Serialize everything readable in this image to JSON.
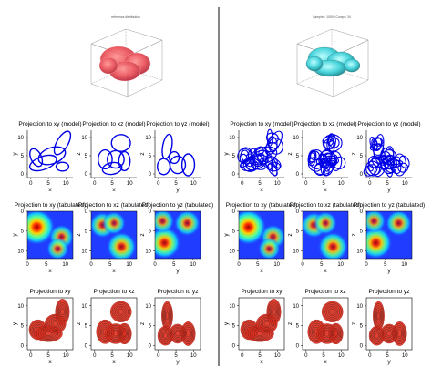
{
  "left_panel": {
    "title3d": "reference distribution",
    "row1_titles": [
      "Projection to xy (model)",
      "Projection to xz (model)",
      "Projection to yz (model)"
    ],
    "row2_titles": [
      "Projection to xy (tabulated)",
      "Projection to xz (tabulated)",
      "Projection to yz (tabulated)"
    ],
    "row3_titles": [
      "Projection to xy",
      "Projection to xz",
      "Projection to yz"
    ]
  },
  "right_panel": {
    "title3d": "Samples: 10000 Comps: 34",
    "row1_titles": [
      "Projection to xy (model)",
      "Projection to xz (model)",
      "Projection to yz (model)"
    ],
    "row2_titles": [
      "Projection to xy (tabulated)",
      "Projection to xz (tabulated)",
      "Projection to yz (tabulated)"
    ],
    "row3_titles": [
      "Projection to xy",
      "Projection to xz",
      "Projection to yz"
    ]
  },
  "axes": {
    "x_label": "x",
    "y_label": "y",
    "z_label": "z",
    "ticks": [
      "0",
      "5",
      "10"
    ]
  },
  "colors": {
    "ellipse": "#0000e6",
    "heat_background": "#1f3cff",
    "contour_fill": "#e03020",
    "contour_line": "#111111",
    "reference_blob": "#e8404a",
    "fitted_blob": "#35d0d8",
    "divider": "#333333"
  },
  "chart_data": [
    {
      "type": "scatter",
      "title": "reference distribution",
      "description_kind": "3d-surface",
      "xlim": [
        0,
        10
      ],
      "ylim": [
        0,
        10
      ],
      "zlim": [
        0,
        10
      ]
    },
    {
      "type": "scatter",
      "title": "Projection to xy (model)",
      "xlabel": "x",
      "ylabel": "y",
      "xlim": [
        -1,
        12
      ],
      "ylim": [
        -1,
        12
      ],
      "ellipses": [
        {
          "cx": 1.5,
          "cy": 4.5,
          "rx": 1.5,
          "ry": 2.6,
          "angle": -25
        },
        {
          "cx": 3.5,
          "cy": 3.0,
          "rx": 4.0,
          "ry": 1.8,
          "angle": -20
        },
        {
          "cx": 6.0,
          "cy": 5.0,
          "rx": 4.0,
          "ry": 2.2,
          "angle": -20
        },
        {
          "cx": 9.0,
          "cy": 8.5,
          "rx": 1.6,
          "ry": 3.6,
          "angle": 30
        },
        {
          "cx": 9.0,
          "cy": 2.0,
          "rx": 1.8,
          "ry": 1.2,
          "angle": 0
        }
      ]
    },
    {
      "type": "scatter",
      "title": "Projection to xz (model)",
      "xlabel": "x",
      "ylabel": "z",
      "xlim": [
        -1,
        12
      ],
      "ylim": [
        -1,
        12
      ],
      "ellipses": [
        {
          "cx": 7.5,
          "cy": 8.5,
          "rx": 2.7,
          "ry": 2.3,
          "angle": 0
        },
        {
          "cx": 3.0,
          "cy": 4.0,
          "rx": 2.0,
          "ry": 2.6,
          "angle": 0
        },
        {
          "cx": 6.0,
          "cy": 4.0,
          "rx": 2.4,
          "ry": 2.4,
          "angle": 0
        },
        {
          "cx": 5.0,
          "cy": 1.5,
          "rx": 2.8,
          "ry": 1.6,
          "angle": -10
        },
        {
          "cx": 8.5,
          "cy": 3.5,
          "rx": 1.6,
          "ry": 2.6,
          "angle": 0
        }
      ]
    },
    {
      "type": "scatter",
      "title": "Projection to yz (model)",
      "xlabel": "y",
      "ylabel": "z",
      "xlim": [
        -1,
        12
      ],
      "ylim": [
        -1,
        12
      ],
      "ellipses": [
        {
          "cx": 2.5,
          "cy": 7.5,
          "rx": 1.3,
          "ry": 3.4,
          "angle": 10
        },
        {
          "cx": 1.5,
          "cy": 2.0,
          "rx": 1.8,
          "ry": 2.2,
          "angle": 0
        },
        {
          "cx": 5.5,
          "cy": 2.5,
          "rx": 2.2,
          "ry": 2.4,
          "angle": 0
        },
        {
          "cx": 8.5,
          "cy": 2.5,
          "rx": 1.8,
          "ry": 3.0,
          "angle": 0
        },
        {
          "cx": 4.5,
          "cy": 4.5,
          "rx": 1.4,
          "ry": 1.6,
          "angle": 0
        }
      ]
    },
    {
      "type": "heatmap",
      "title": "Projection to xy (tabulated)",
      "xlabel": "x",
      "ylabel": "y",
      "xlim": [
        0,
        12
      ],
      "ylim": [
        0,
        12
      ],
      "peaks": [
        {
          "x": 2.5,
          "y": 4.0,
          "intensity": 1.0
        },
        {
          "x": 9.0,
          "y": 6.5,
          "intensity": 0.55
        },
        {
          "x": 8.0,
          "y": 9.5,
          "intensity": 0.45
        }
      ]
    },
    {
      "type": "heatmap",
      "title": "Projection to xz (tabulated)",
      "xlabel": "x",
      "ylabel": "z",
      "xlim": [
        0,
        12
      ],
      "ylim": [
        0,
        12
      ],
      "peaks": [
        {
          "x": 8.0,
          "y": 9.0,
          "intensity": 0.75
        },
        {
          "x": 3.0,
          "y": 3.5,
          "intensity": 0.6
        },
        {
          "x": 6.0,
          "y": 3.0,
          "intensity": 0.5
        }
      ]
    },
    {
      "type": "heatmap",
      "title": "Projection to yz (tabulated)",
      "xlabel": "y",
      "ylabel": "z",
      "xlim": [
        0,
        12
      ],
      "ylim": [
        0,
        12
      ],
      "peaks": [
        {
          "x": 2.5,
          "y": 8.0,
          "intensity": 0.85
        },
        {
          "x": 8.5,
          "y": 3.0,
          "intensity": 0.6
        },
        {
          "x": 2.0,
          "y": 2.5,
          "intensity": 0.5
        }
      ]
    },
    {
      "type": "heatmap",
      "title": "Projection to xy",
      "xlabel": "x",
      "ylabel": "y",
      "xlim": [
        -1,
        12
      ],
      "ylim": [
        -1,
        12
      ],
      "blobs": [
        {
          "cx": 2.0,
          "cy": 4.0,
          "rx": 2.5,
          "ry": 2.5
        },
        {
          "cx": 5.0,
          "cy": 3.0,
          "rx": 4.0,
          "ry": 2.0
        },
        {
          "cx": 7.0,
          "cy": 5.5,
          "rx": 3.0,
          "ry": 2.4
        },
        {
          "cx": 9.0,
          "cy": 8.5,
          "rx": 2.0,
          "ry": 3.2
        }
      ]
    },
    {
      "type": "heatmap",
      "title": "Projection to xz",
      "xlabel": "x",
      "ylabel": "z",
      "xlim": [
        -1,
        12
      ],
      "ylim": [
        -1,
        12
      ],
      "blobs": [
        {
          "cx": 7.5,
          "cy": 8.5,
          "rx": 3.0,
          "ry": 2.6
        },
        {
          "cx": 3.0,
          "cy": 3.5,
          "rx": 2.5,
          "ry": 3.0
        },
        {
          "cx": 6.0,
          "cy": 3.0,
          "rx": 3.0,
          "ry": 2.5
        },
        {
          "cx": 8.5,
          "cy": 3.0,
          "rx": 2.0,
          "ry": 2.6
        }
      ]
    },
    {
      "type": "heatmap",
      "title": "Projection to yz",
      "xlabel": "y",
      "ylabel": "z",
      "xlim": [
        -1,
        12
      ],
      "ylim": [
        -1,
        12
      ],
      "blobs": [
        {
          "cx": 2.5,
          "cy": 7.5,
          "rx": 1.6,
          "ry": 3.6
        },
        {
          "cx": 2.0,
          "cy": 2.5,
          "rx": 2.2,
          "ry": 2.4
        },
        {
          "cx": 5.5,
          "cy": 3.0,
          "rx": 2.4,
          "ry": 2.4
        },
        {
          "cx": 8.5,
          "cy": 3.0,
          "rx": 2.0,
          "ry": 3.0
        }
      ]
    }
  ]
}
